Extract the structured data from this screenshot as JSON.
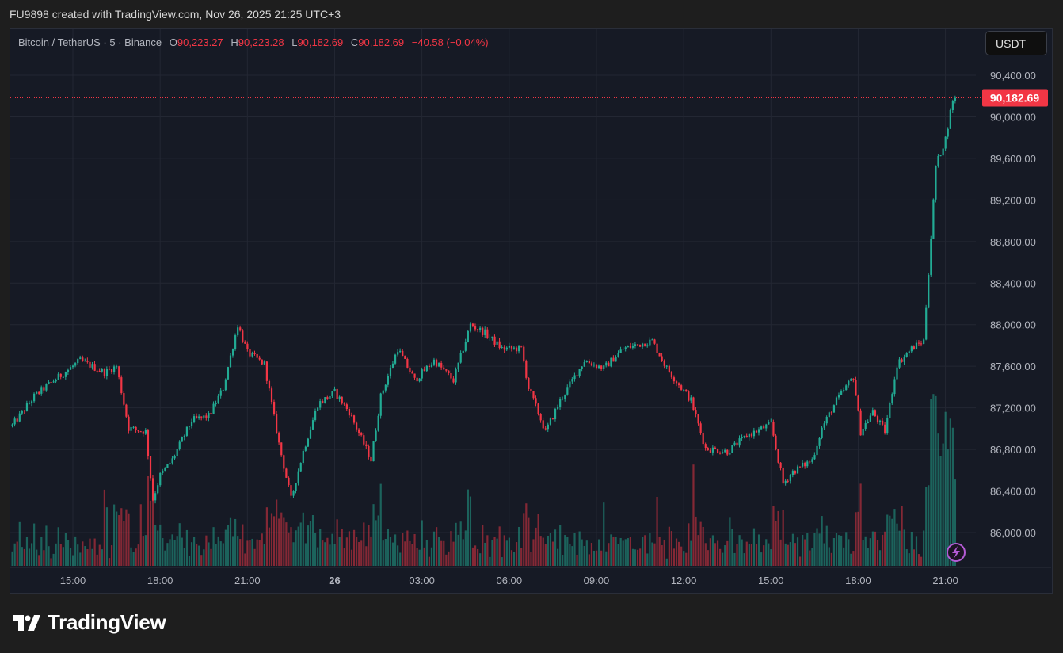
{
  "caption": "FU9898 created with TradingView.com, Nov 26, 2025 21:25 UTC+3",
  "legend": {
    "symbol": "Bitcoin / TetherUS · 5 · Binance",
    "o_label": "O",
    "o": "90,223.27",
    "h_label": "H",
    "h": "90,223.28",
    "l_label": "L",
    "l": "90,182.69",
    "c_label": "C",
    "c": "90,182.69",
    "change": "−40.58 (−0.04%)"
  },
  "currency_button": "USDT",
  "brand": "TradingView",
  "colors": {
    "up": "#22ab94",
    "down": "#f23645",
    "grid": "#232733",
    "accent": "#b45bd6"
  },
  "chart_data": {
    "type": "candlestick",
    "title": "Bitcoin / TetherUS · 5 · Binance",
    "interval_minutes": 5,
    "bar_count": 390,
    "ylim": [
      85700,
      90800
    ],
    "y_ticks": [
      86000,
      86400,
      86800,
      87200,
      87600,
      88000,
      88400,
      88800,
      89200,
      89600,
      90000,
      90400
    ],
    "y_tick_labels": [
      "86,000.00",
      "86,400.00",
      "86,800.00",
      "87,200.00",
      "87,600.00",
      "88,000.00",
      "88,400.00",
      "88,800.00",
      "89,200.00",
      "89,600.00",
      "90,000.00",
      "90,400.00"
    ],
    "last_price": 90182.69,
    "last_price_label": "90,182.69",
    "x_ticks": [
      {
        "bar": 25,
        "label": "15:00"
      },
      {
        "bar": 61,
        "label": "18:00"
      },
      {
        "bar": 97,
        "label": "21:00"
      },
      {
        "bar": 133,
        "label": "26",
        "bold": true
      },
      {
        "bar": 169,
        "label": "03:00"
      },
      {
        "bar": 205,
        "label": "06:00"
      },
      {
        "bar": 241,
        "label": "09:00"
      },
      {
        "bar": 277,
        "label": "12:00"
      },
      {
        "bar": 313,
        "label": "15:00"
      },
      {
        "bar": 349,
        "label": "18:00"
      },
      {
        "bar": 385,
        "label": "21:00"
      }
    ],
    "close_path": [
      [
        0,
        87030
      ],
      [
        9,
        87310
      ],
      [
        15,
        87425
      ],
      [
        28,
        87655
      ],
      [
        38,
        87540
      ],
      [
        43,
        87600
      ],
      [
        48,
        87005
      ],
      [
        55,
        86970
      ],
      [
        58,
        86320
      ],
      [
        61,
        86550
      ],
      [
        66,
        86700
      ],
      [
        74,
        87080
      ],
      [
        81,
        87120
      ],
      [
        87,
        87390
      ],
      [
        93,
        88000
      ],
      [
        97,
        87730
      ],
      [
        104,
        87620
      ],
      [
        110,
        86855
      ],
      [
        115,
        86320
      ],
      [
        120,
        86780
      ],
      [
        126,
        87235
      ],
      [
        133,
        87350
      ],
      [
        139,
        87160
      ],
      [
        148,
        86700
      ],
      [
        152,
        87310
      ],
      [
        159,
        87770
      ],
      [
        166,
        87465
      ],
      [
        174,
        87655
      ],
      [
        182,
        87465
      ],
      [
        189,
        88000
      ],
      [
        195,
        87920
      ],
      [
        202,
        87770
      ],
      [
        210,
        87770
      ],
      [
        213,
        87390
      ],
      [
        220,
        86970
      ],
      [
        226,
        87270
      ],
      [
        236,
        87655
      ],
      [
        244,
        87580
      ],
      [
        252,
        87770
      ],
      [
        264,
        87845
      ],
      [
        270,
        87580
      ],
      [
        280,
        87270
      ],
      [
        286,
        86810
      ],
      [
        295,
        86780
      ],
      [
        303,
        86930
      ],
      [
        313,
        87045
      ],
      [
        318,
        86470
      ],
      [
        322,
        86585
      ],
      [
        330,
        86700
      ],
      [
        334,
        87005
      ],
      [
        340,
        87270
      ],
      [
        347,
        87500
      ],
      [
        350,
        86970
      ],
      [
        355,
        87160
      ],
      [
        360,
        86970
      ],
      [
        365,
        87620
      ],
      [
        371,
        87770
      ],
      [
        376,
        87845
      ],
      [
        379,
        88840
      ],
      [
        381,
        89525
      ],
      [
        385,
        89790
      ],
      [
        388,
        90170
      ],
      [
        389,
        90183
      ]
    ]
  }
}
